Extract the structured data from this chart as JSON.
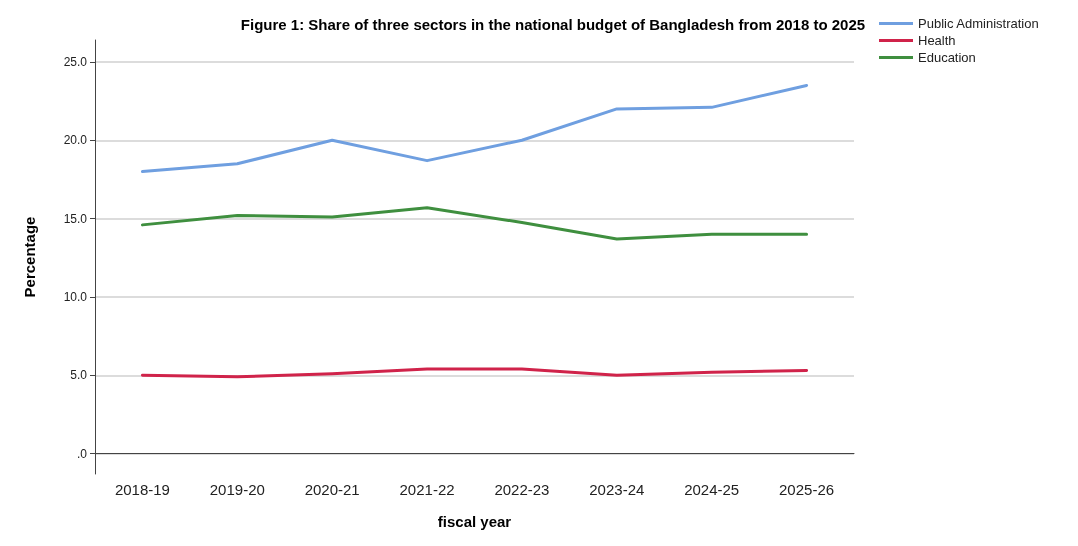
{
  "chart_data": {
    "type": "line",
    "title": "Figure 1: Share of three sectors in the national budget of Bangladesh from 2018 to 2025",
    "xlabel": "fiscal year",
    "ylabel": "Percentage",
    "categories": [
      "2018-19",
      "2019-20",
      "2020-21",
      "2021-22",
      "2022-23",
      "2023-24",
      "2024-25",
      "2025-26"
    ],
    "series": [
      {
        "name": "Public Administration",
        "color": "#6f9fe0",
        "values": [
          18.0,
          18.5,
          20.0,
          18.7,
          20.0,
          22.0,
          22.1,
          23.5
        ]
      },
      {
        "name": "Health",
        "color": "#d0234a",
        "values": [
          5.0,
          4.9,
          5.1,
          5.4,
          5.4,
          5.0,
          5.2,
          5.3
        ]
      },
      {
        "name": "Education",
        "color": "#3f8f3f",
        "values": [
          14.6,
          15.2,
          15.1,
          15.7,
          14.75,
          13.7,
          14.0,
          14.0
        ]
      }
    ],
    "ylim": [
      -1.3,
      26.4
    ],
    "yticks": [
      {
        "value": 0,
        "label": ".0"
      },
      {
        "value": 5,
        "label": "5.0"
      },
      {
        "value": 10,
        "label": "10.0"
      },
      {
        "value": 15,
        "label": "15.0"
      },
      {
        "value": 20,
        "label": "20.0"
      },
      {
        "value": 25,
        "label": "25.0"
      }
    ],
    "grid": "y",
    "legend": "top right",
    "marker": "none",
    "line_style": "solid"
  }
}
